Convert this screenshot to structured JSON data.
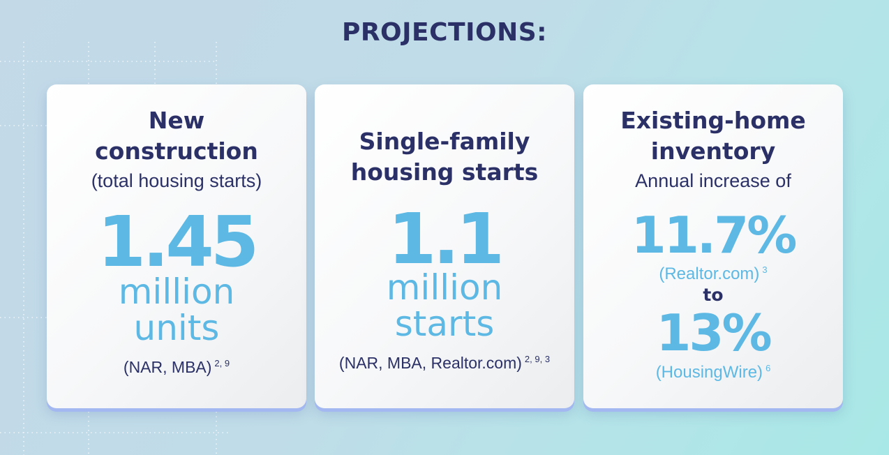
{
  "title": "PROJECTIONS:",
  "cards": [
    {
      "heading": [
        "New",
        "construction"
      ],
      "subheading": "(total housing starts)",
      "value": "1.45",
      "unit": [
        "million",
        "units"
      ],
      "source": "(NAR, MBA)",
      "refs": "2, 9"
    },
    {
      "heading": [
        "Single-family",
        "housing starts"
      ],
      "value": "1.1",
      "unit": [
        "million",
        "starts"
      ],
      "source": "(NAR, MBA, Realtor.com)",
      "refs": "2, 9, 3"
    },
    {
      "heading": [
        "Existing-home",
        "inventory"
      ],
      "subheading": "Annual increase of",
      "value_low": "11.7%",
      "source_low": "(Realtor.com)",
      "ref_low": "3",
      "connector": "to",
      "value_high": "13%",
      "source_high": "(HousingWire)",
      "ref_high": "6"
    }
  ],
  "colors": {
    "heading": "#2b3166",
    "accent": "#5db8e4",
    "card_shadow": "#a3b8f0"
  }
}
